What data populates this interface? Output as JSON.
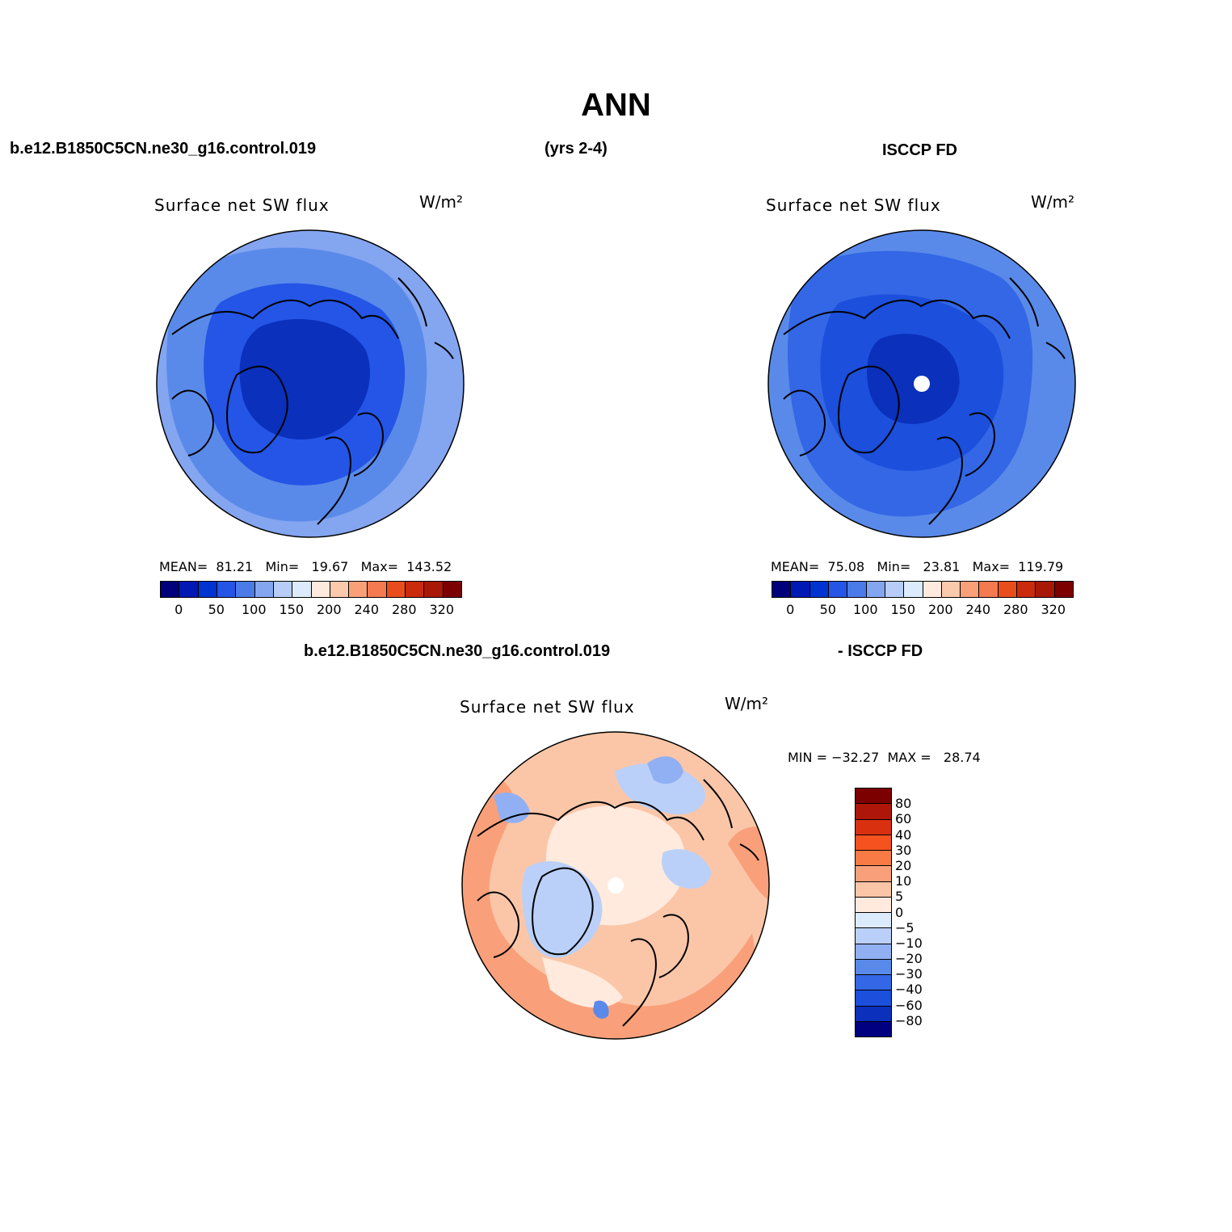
{
  "figure": {
    "title": "ANN",
    "case_label": "b.e12.B1850C5CN.ne30_g16.control.019",
    "years_label": "(yrs 2-4)",
    "obs_label": "ISCCP FD",
    "diff_case_label": "b.e12.B1850C5CN.ne30_g16.control.019",
    "diff_obs_label": "- ISCCP FD"
  },
  "panels": {
    "model": {
      "title": "Surface net SW flux",
      "units": "W/m²",
      "stats": "MEAN=  81.21   Min=   19.67   Max=  143.52"
    },
    "obs": {
      "title": "Surface net SW flux",
      "units": "W/m²",
      "stats": "MEAN=  75.08   Min=   23.81   Max=  119.79"
    },
    "diff": {
      "title": "Surface net SW flux",
      "units": "W/m²",
      "stats": "MIN = −32.27  MAX =   28.74"
    }
  },
  "colorbars": {
    "abs": {
      "colors": [
        "#00007a",
        "#0019b4",
        "#0033d0",
        "#2455e6",
        "#4a7be8",
        "#84a5f0",
        "#b7cdf7",
        "#dcebfb",
        "#ffeadd",
        "#fdc9ad",
        "#f9a078",
        "#f57a4f",
        "#ea4d1c",
        "#c92b0c",
        "#a91806",
        "#7d0000"
      ],
      "ticks": [
        "0",
        "50",
        "100",
        "150",
        "200",
        "240",
        "280",
        "320"
      ]
    },
    "diff": {
      "colors": [
        "#7d0000",
        "#ad1608",
        "#d93010",
        "#f5521f",
        "#f87a45",
        "#f9a07a",
        "#fbc6a8",
        "#ffeadd",
        "#dcebfb",
        "#bad0f8",
        "#90b0f3",
        "#5a8ae9",
        "#3467e6",
        "#1b4fdc",
        "#0a30bc",
        "#000080"
      ],
      "ticks": [
        "80",
        "60",
        "40",
        "30",
        "20",
        "10",
        "5",
        "0",
        "−5",
        "−10",
        "−20",
        "−30",
        "−40",
        "−60",
        "−80"
      ]
    }
  },
  "map_colors": {
    "outer_model": "#84a5f0",
    "mid_model": "#5a8ae9",
    "inner_model": "#2455e6",
    "core_model": "#0a30bc",
    "outer_obs": "#5a8ae9",
    "mid_obs": "#3467e6",
    "inner_obs": "#1b4fdc",
    "core_obs": "#0a30bc",
    "diff_base": "#fbc6a8",
    "diff_warm": "#f9a07a",
    "diff_light": "#ffeadd",
    "diff_cool": "#bad0f8",
    "diff_cool2": "#90b0f3",
    "diff_cool3": "#5a8ae9",
    "pole_hole": "#ffffff"
  }
}
